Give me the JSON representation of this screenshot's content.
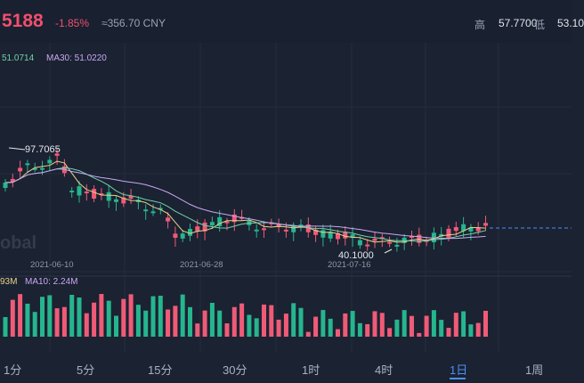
{
  "header": {
    "price": "5188",
    "change": "-1.85%",
    "cny": "≈356.70 CNY",
    "high_label": "高",
    "high_value": "57.7700",
    "low_label": "低",
    "low_value": "53.10"
  },
  "indicators": {
    "ma7": "51.0714",
    "ma30": "MA30: 51.0220",
    "vol_ma5": "93M",
    "vol_ma10": "MA10: 2.24M"
  },
  "chart": {
    "high_marker": "97.7065",
    "low_marker": "40.1000",
    "dates": [
      "2021-06-10",
      "2021-06-28",
      "2021-07-16"
    ],
    "watermark": "obal"
  },
  "timeframes": [
    {
      "label": "1分",
      "active": false
    },
    {
      "label": "5分",
      "active": false
    },
    {
      "label": "15分",
      "active": false
    },
    {
      "label": "30分",
      "active": false
    },
    {
      "label": "1时",
      "active": false
    },
    {
      "label": "4时",
      "active": false
    },
    {
      "label": "1日",
      "active": true
    },
    {
      "label": "1周",
      "active": false
    }
  ],
  "colors": {
    "up": "#26b58e",
    "down": "#ef5b77",
    "accent": "#4a90f0"
  }
}
